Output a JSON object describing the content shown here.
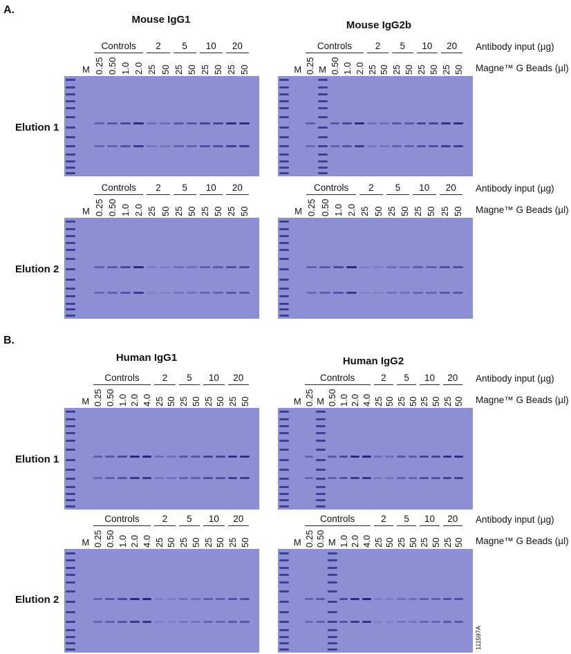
{
  "section_a": "A.",
  "section_b": "B.",
  "row_labels": {
    "antibody_input": "Antibody input (µg)",
    "beads": "Magne™ G Beads (µl)"
  },
  "elution_labels": [
    "Elution 1",
    "Elution 2",
    "Elution 1",
    "Elution 2"
  ],
  "titles": [
    "Mouse IgG1",
    "Mouse IgG2b",
    "Human IgG1",
    "Human IgG2"
  ],
  "groups": [
    "Controls",
    "2",
    "5",
    "10",
    "20"
  ],
  "colors": {
    "gel": "#8b8fd3",
    "band": "#23237e"
  },
  "panels": [
    {
      "lanes": [
        "M",
        "0.25",
        "0.50",
        "1.0",
        "2.0",
        "25",
        "50",
        "25",
        "50",
        "25",
        "50",
        "25",
        "50"
      ]
    },
    {
      "lanes": [
        "M",
        "0.25",
        "M",
        "0.50",
        "1.0",
        "2.0",
        "25",
        "50",
        "25",
        "50",
        "25",
        "50",
        "25",
        "50"
      ]
    },
    {
      "lanes": [
        "M",
        "0.25",
        "0.50",
        "1.0",
        "2.0",
        "25",
        "50",
        "25",
        "50",
        "25",
        "50",
        "25",
        "50"
      ]
    },
    {
      "lanes": [
        "M",
        "0.25",
        "0.50",
        "1.0",
        "2.0",
        "25",
        "50",
        "25",
        "50",
        "25",
        "50",
        "25",
        "50"
      ]
    },
    {
      "lanes": [
        "M",
        "0.25",
        "0.50",
        "1.0",
        "2.0",
        "4.0",
        "25",
        "50",
        "25",
        "50",
        "25",
        "50",
        "25",
        "50"
      ]
    },
    {
      "lanes": [
        "M",
        "0.25",
        "M",
        "0.50",
        "1.0",
        "2.0",
        "4.0",
        "25",
        "50",
        "25",
        "50",
        "25",
        "50",
        "25",
        "50"
      ]
    },
    {
      "lanes": [
        "M",
        "0.25",
        "0.50",
        "1.0",
        "2.0",
        "4.0",
        "25",
        "50",
        "25",
        "50",
        "25",
        "50",
        "25",
        "50"
      ]
    },
    {
      "lanes": [
        "M",
        "0.25",
        "0.50",
        "M",
        "1.0",
        "2.0",
        "4.0",
        "25",
        "50",
        "25",
        "50",
        "25",
        "50",
        "25",
        "50"
      ]
    }
  ],
  "figure_code": "111597A"
}
